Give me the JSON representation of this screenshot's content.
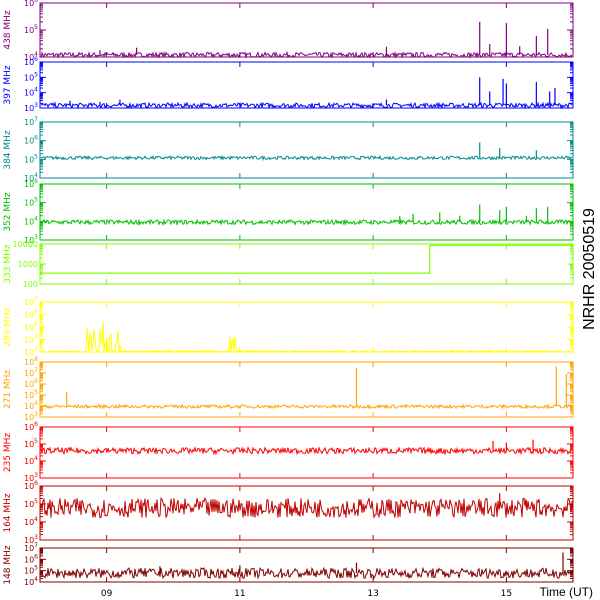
{
  "chart_data": {
    "type": "line",
    "title": "",
    "side_label": "NRHR 20050519",
    "xlabel": "Time (UT)",
    "x_range_hours": [
      8.0,
      16.0
    ],
    "x_ticks": [
      "09",
      "11",
      "13",
      "15"
    ],
    "x_tick_values": [
      9,
      11,
      13,
      15
    ],
    "series": [
      {
        "name": "438 MHz",
        "color": "#800080",
        "scale": "log",
        "ylim": [
          10000,
          1000000
        ],
        "tick_labels": [
          "10^4",
          "10^5",
          "10^6"
        ],
        "baseline": 12000,
        "noise": 0.03,
        "peaks": [
          [
            8.3,
            13000
          ],
          [
            8.9,
            18000
          ],
          [
            9.1,
            14000
          ],
          [
            9.45,
            22000
          ],
          [
            13.2,
            24000
          ],
          [
            14.0,
            13000
          ],
          [
            14.6,
            200000
          ],
          [
            14.75,
            30000
          ],
          [
            15.0,
            180000
          ],
          [
            15.2,
            25000
          ],
          [
            15.45,
            60000
          ],
          [
            15.62,
            110000
          ]
        ]
      },
      {
        "name": "397 MHz",
        "color": "#0000ff",
        "scale": "log",
        "ylim": [
          1000,
          1000000
        ],
        "tick_labels": [
          "10^3",
          "10^4",
          "10^5",
          "10^6"
        ],
        "baseline": 1500,
        "noise": 0.05,
        "peaks": [
          [
            8.45,
            3000
          ],
          [
            8.9,
            2500
          ],
          [
            9.2,
            3500
          ],
          [
            13.2,
            3500
          ],
          [
            14.6,
            100000
          ],
          [
            14.75,
            12000
          ],
          [
            14.95,
            80000
          ],
          [
            15.0,
            40000
          ],
          [
            15.45,
            50000
          ],
          [
            15.65,
            12000
          ],
          [
            15.73,
            20000
          ]
        ]
      },
      {
        "name": "384 MHz",
        "color": "#008b8b",
        "scale": "log",
        "ylim": [
          10000,
          10000000
        ],
        "tick_labels": [
          "10^4",
          "10^5",
          "10^6",
          "10^7"
        ],
        "baseline": 120000,
        "noise": 0.03,
        "peaks": [
          [
            14.6,
            800000
          ],
          [
            14.9,
            400000
          ],
          [
            15.45,
            300000
          ]
        ]
      },
      {
        "name": "352 MHz",
        "color": "#00c000",
        "scale": "log",
        "ylim": [
          1000,
          1000000
        ],
        "tick_labels": [
          "10^3",
          "10^4",
          "10^5",
          "10^6"
        ],
        "baseline": 9000,
        "noise": 0.04,
        "peaks": [
          [
            13.4,
            20000
          ],
          [
            13.6,
            25000
          ],
          [
            14.0,
            30000
          ],
          [
            14.3,
            20000
          ],
          [
            14.6,
            80000
          ],
          [
            14.9,
            40000
          ],
          [
            15.0,
            60000
          ],
          [
            15.3,
            20000
          ],
          [
            15.45,
            50000
          ],
          [
            15.62,
            60000
          ]
        ]
      },
      {
        "name": "333 MHz",
        "color": "#80ff00",
        "scale": "log",
        "ylim": [
          100,
          10000
        ],
        "tick_labels": [
          "100",
          "1000",
          "10000"
        ],
        "step": [
          [
            8.0,
            350
          ],
          [
            13.85,
            350
          ],
          [
            13.85,
            8500
          ],
          [
            16.0,
            8500
          ]
        ]
      },
      {
        "name": "289 MHz",
        "color": "#ffff00",
        "scale": "log",
        "ylim": [
          1000,
          10000000
        ],
        "tick_labels": [
          "10^3",
          "10^4",
          "10^5",
          "10^6",
          "10^7"
        ],
        "baseline": 1100,
        "noise": 0.02,
        "bursts": [
          [
            8.7,
            9.3,
            300000
          ],
          [
            10.85,
            10.95,
            20000
          ]
        ]
      },
      {
        "name": "271 MHz",
        "color": "#ffa500",
        "scale": "log",
        "ylim": [
          1000,
          100000000
        ],
        "tick_labels": [
          "10^3",
          "10^4",
          "10^5",
          "10^6",
          "10^7",
          "10^8"
        ],
        "baseline": 9000,
        "noise": 0.05,
        "peaks": [
          [
            8.4,
            200000
          ],
          [
            12.75,
            30000000
          ],
          [
            15.75,
            40000000
          ],
          [
            15.9,
            8000000
          ]
        ]
      },
      {
        "name": "235 MHz",
        "color": "#ff0000",
        "scale": "log",
        "ylim": [
          1000,
          1000000
        ],
        "tick_labels": [
          "10^3",
          "10^4",
          "10^5",
          "10^6"
        ],
        "baseline": 40000,
        "noise": 0.06,
        "peaks": [
          [
            14.8,
            150000
          ],
          [
            15.0,
            120000
          ],
          [
            15.4,
            180000
          ]
        ]
      },
      {
        "name": "164 MHz",
        "color": "#c00000",
        "scale": "log",
        "ylim": [
          1000,
          1000000
        ],
        "tick_labels": [
          "10^3",
          "10^4",
          "10^5",
          "10^6"
        ],
        "baseline": 60000,
        "noise": 0.18,
        "peaks": [
          [
            14.9,
            400000
          ],
          [
            15.3,
            150000
          ]
        ]
      },
      {
        "name": "148 MHz",
        "color": "#800000",
        "scale": "log",
        "ylim": [
          10000,
          10000000
        ],
        "tick_labels": [
          "10^4",
          "10^5",
          "10^6",
          "10^7"
        ],
        "baseline": 60000,
        "noise": 0.15,
        "peaks": [
          [
            9.8,
            250000
          ],
          [
            11.0,
            300000
          ],
          [
            12.75,
            500000
          ],
          [
            15.85,
            4000000
          ]
        ]
      }
    ]
  }
}
